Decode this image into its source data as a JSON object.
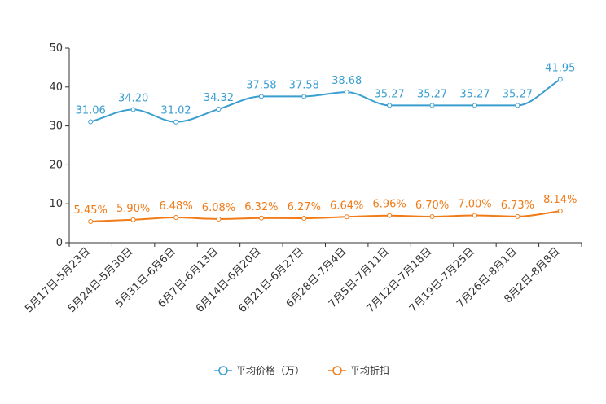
{
  "chart_data": {
    "type": "line",
    "title": "",
    "xlabel": "",
    "ylabel": "",
    "ylim": [
      0,
      50
    ],
    "yticks": [
      0,
      10,
      20,
      30,
      40,
      50
    ],
    "grid": false,
    "legend_position": "bottom",
    "categories": [
      "5月17日-5月23日",
      "5月24日-5月30日",
      "5月31日-6月6日",
      "6月7日-6月13日",
      "6月14日-6月20日",
      "6月21日-6月27日",
      "6月28日-7月4日",
      "7月5日-7月11日",
      "7月12日-7月18日",
      "7月19日-7月25日",
      "7月26日-8月1日",
      "8月2日-8月8日"
    ],
    "series": [
      {
        "name": "平均价格（万）",
        "color": "#3a9ed1",
        "values": [
          31.06,
          34.2,
          31.02,
          34.32,
          37.58,
          37.58,
          38.68,
          35.27,
          35.27,
          35.27,
          35.27,
          41.95
        ],
        "labels": [
          "31.06",
          "34.20",
          "31.02",
          "34.32",
          "37.58",
          "37.58",
          "38.68",
          "35.27",
          "35.27",
          "35.27",
          "35.27",
          "41.95"
        ]
      },
      {
        "name": "平均折扣",
        "color": "#f07b18",
        "values": [
          5.45,
          5.9,
          6.48,
          6.08,
          6.32,
          6.27,
          6.64,
          6.96,
          6.7,
          7.0,
          6.73,
          8.14
        ],
        "labels": [
          "5.45%",
          "5.90%",
          "6.48%",
          "6.08%",
          "6.32%",
          "6.27%",
          "6.64%",
          "6.96%",
          "6.70%",
          "7.00%",
          "6.73%",
          "8.14%"
        ]
      }
    ]
  }
}
